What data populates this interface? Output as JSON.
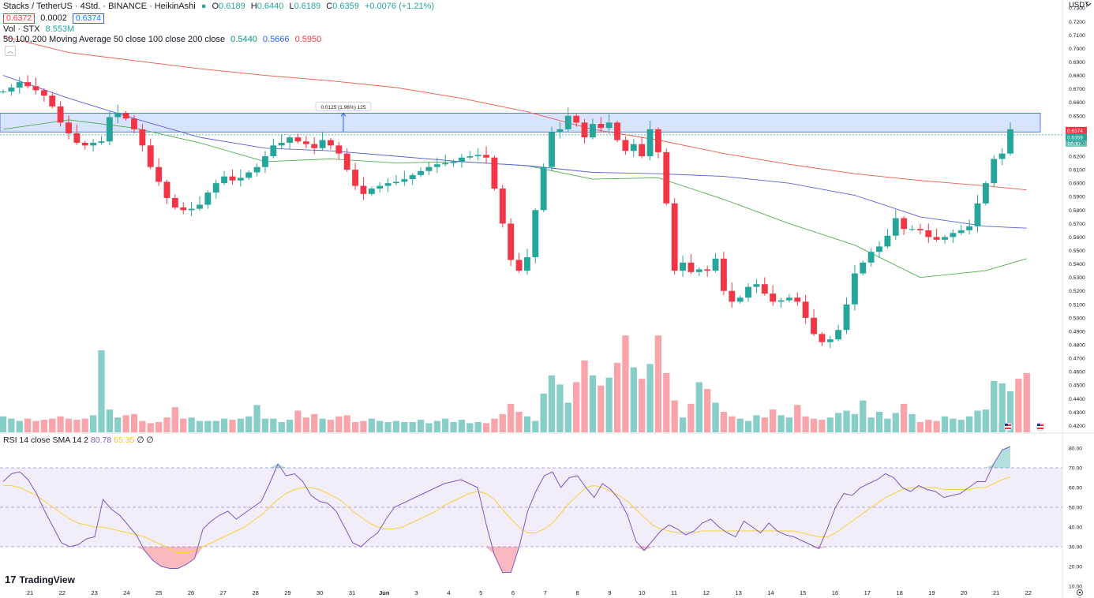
{
  "legend": {
    "title": "Stacks / TetherUS · 4Std. · BINANCE · HeikinAshi",
    "o_label": "O",
    "o_value": "0.6189",
    "h_label": "H",
    "h_value": "0.6440",
    "l_label": "L",
    "l_value": "0.6189",
    "c_label": "C",
    "c_value": "0.6359",
    "change": "+0.0076 (+1.21%)",
    "bid": "0.6372",
    "spread": "0.0002",
    "ask": "0.6374",
    "vol_label": "Vol · STX",
    "vol_value": "8.553M",
    "ma_label": "50,100,200 Moving Average 50 close 100 close 200 close",
    "ma50": "0.5440",
    "ma100": "0.5666",
    "ma200": "0.5950",
    "rsi_label": "RSI 14 close SMA 14 2",
    "rsi_value": "80.78",
    "rsi_sma": "65.35",
    "rsi_extra": "∅ ∅"
  },
  "brand": {
    "logo_text": "TradingView"
  },
  "colors": {
    "up": "#26a69a",
    "down": "#f23645",
    "ma50": "#4caf50",
    "ma100": "#5b5fd6",
    "ma200": "#f05a4f",
    "rsi": "#7e57c2",
    "rsi_sma": "#f5d23b",
    "zone": "#2962ff"
  },
  "chart_data": [
    {
      "type": "candlestick",
      "title": "Stacks / TetherUS · 4Std. · BINANCE · HeikinAshi",
      "currency": "USDT",
      "x_labels": [
        "21",
        "22",
        "23",
        "24",
        "25",
        "26",
        "27",
        "28",
        "29",
        "30",
        "31",
        "Jun",
        "3",
        "4",
        "5",
        "6",
        "7",
        "8",
        "9",
        "10",
        "11",
        "12",
        "13",
        "14",
        "15",
        "16",
        "17",
        "18",
        "19",
        "20",
        "21",
        "22"
      ],
      "y_ticks": [
        "0.7300",
        "0.7200",
        "0.7100",
        "0.7000",
        "0.6900",
        "0.6800",
        "0.6700",
        "0.6600",
        "0.6500",
        "0.6400",
        "0.6300",
        "0.6200",
        "0.6100",
        "0.6000",
        "0.5900",
        "0.5800",
        "0.5700",
        "0.5600",
        "0.5500",
        "0.5400",
        "0.5300",
        "0.5200",
        "0.5100",
        "0.5000",
        "0.4900",
        "0.4800",
        "0.4700",
        "0.4600",
        "0.4500",
        "0.4400",
        "0.4300",
        "0.4200"
      ],
      "ylim": [
        0.415,
        0.736
      ],
      "price_labels": [
        "0.6374",
        "0.6359",
        "00:30:"
      ],
      "range_zone": {
        "low": 0.638,
        "high": 0.652,
        "label": "0.0125 (1.96%) 125"
      },
      "close_path": [
        0.668,
        0.671,
        0.675,
        0.672,
        0.669,
        0.665,
        0.657,
        0.645,
        0.637,
        0.63,
        0.628,
        0.63,
        0.631,
        0.649,
        0.652,
        0.648,
        0.64,
        0.628,
        0.612,
        0.601,
        0.589,
        0.582,
        0.58,
        0.581,
        0.584,
        0.593,
        0.6,
        0.605,
        0.602,
        0.604,
        0.608,
        0.612,
        0.62,
        0.628,
        0.63,
        0.634,
        0.631,
        0.629,
        0.626,
        0.632,
        0.628,
        0.622,
        0.61,
        0.598,
        0.592,
        0.596,
        0.598,
        0.6,
        0.601,
        0.603,
        0.606,
        0.609,
        0.612,
        0.614,
        0.615,
        0.616,
        0.619,
        0.62,
        0.621,
        0.619,
        0.596,
        0.57,
        0.543,
        0.535,
        0.545,
        0.58,
        0.612,
        0.638,
        0.64,
        0.65,
        0.645,
        0.634,
        0.644,
        0.641,
        0.645,
        0.632,
        0.624,
        0.629,
        0.62,
        0.64,
        0.623,
        0.585,
        0.535,
        0.541,
        0.534,
        0.536,
        0.535,
        0.544,
        0.52,
        0.512,
        0.515,
        0.523,
        0.525,
        0.518,
        0.512,
        0.513,
        0.515,
        0.512,
        0.5,
        0.488,
        0.482,
        0.484,
        0.491,
        0.51,
        0.533,
        0.541,
        0.549,
        0.553,
        0.561,
        0.574,
        0.566,
        0.566,
        0.565,
        0.56,
        0.558,
        0.56,
        0.563,
        0.565,
        0.568,
        0.585,
        0.6,
        0.618,
        0.622,
        0.64
      ],
      "series": [
        {
          "name": "MA 50",
          "x": [
            0,
            8,
            16,
            24,
            32,
            40,
            48,
            56,
            64,
            72,
            80,
            88,
            96,
            104,
            112,
            120,
            125
          ],
          "values": [
            0.64,
            0.647,
            0.641,
            0.63,
            0.616,
            0.618,
            0.615,
            0.616,
            0.613,
            0.603,
            0.604,
            0.588,
            0.57,
            0.554,
            0.53,
            0.535,
            0.544
          ]
        },
        {
          "name": "MA 100",
          "x": [
            0,
            8,
            16,
            24,
            32,
            40,
            48,
            56,
            64,
            72,
            80,
            88,
            96,
            104,
            112,
            120,
            125
          ],
          "values": [
            0.68,
            0.663,
            0.648,
            0.634,
            0.626,
            0.624,
            0.62,
            0.616,
            0.613,
            0.608,
            0.607,
            0.605,
            0.6,
            0.591,
            0.575,
            0.568,
            0.5666
          ]
        },
        {
          "name": "MA 200",
          "x": [
            0,
            8,
            16,
            24,
            32,
            40,
            48,
            56,
            64,
            72,
            80,
            88,
            96,
            104,
            112,
            120,
            125
          ],
          "values": [
            0.709,
            0.697,
            0.691,
            0.685,
            0.68,
            0.676,
            0.671,
            0.663,
            0.653,
            0.64,
            0.632,
            0.622,
            0.614,
            0.607,
            0.602,
            0.598,
            0.595
          ]
        }
      ]
    },
    {
      "type": "bar",
      "title": "Vol · STX",
      "values": [
        14,
        12,
        10,
        12,
        10,
        11,
        12,
        14,
        12,
        11,
        12,
        15,
        72,
        20,
        13,
        15,
        16,
        10,
        8,
        9,
        13,
        22,
        12,
        13,
        10,
        10,
        10,
        12,
        11,
        12,
        14,
        24,
        12,
        12,
        9,
        11,
        19,
        13,
        16,
        12,
        11,
        14,
        15,
        9,
        10,
        12,
        10,
        9,
        10,
        9,
        9,
        11,
        8,
        10,
        12,
        9,
        11,
        8,
        9,
        8,
        12,
        16,
        25,
        18,
        14,
        10,
        34,
        50,
        42,
        26,
        44,
        63,
        50,
        41,
        48,
        61,
        85,
        57,
        47,
        60,
        85,
        52,
        28,
        13,
        25,
        44,
        38,
        26,
        18,
        14,
        12,
        10,
        15,
        13,
        20,
        15,
        13,
        24,
        14,
        12,
        11,
        13,
        17,
        19,
        16,
        28,
        13,
        18,
        12,
        17,
        25,
        16,
        9,
        11,
        10,
        14,
        12,
        11,
        14,
        19,
        20,
        45,
        43,
        36,
        47,
        52
      ],
      "ylim": [
        0,
        90
      ]
    },
    {
      "type": "line",
      "title": "RSI 14 close SMA 14 2",
      "y_ticks": [
        "80.00",
        "70.00",
        "60.00",
        "50.00",
        "40.00",
        "30.00",
        "20.00",
        "10.00"
      ],
      "ylim": [
        8,
        84
      ],
      "bands": [
        30,
        70
      ],
      "series": [
        {
          "name": "RSI",
          "values": [
            63,
            67,
            68,
            64,
            57,
            48,
            40,
            32,
            30,
            31,
            34,
            35,
            54,
            49,
            46,
            41,
            36,
            28,
            23,
            20,
            19,
            19,
            21,
            24,
            39,
            43,
            46,
            48,
            44,
            47,
            50,
            53,
            62,
            72,
            66,
            67,
            63,
            56,
            53,
            52,
            48,
            40,
            32,
            30,
            34,
            37,
            44,
            50,
            52,
            54,
            56,
            58,
            60,
            62,
            63,
            64,
            62,
            60,
            42,
            26,
            17,
            17,
            30,
            48,
            58,
            66,
            68,
            60,
            65,
            66,
            60,
            55,
            62,
            59,
            54,
            46,
            33,
            28,
            33,
            38,
            41,
            39,
            36,
            38,
            42,
            44,
            40,
            37,
            35,
            43,
            40,
            37,
            42,
            38,
            36,
            35,
            33,
            31,
            29,
            39,
            50,
            57,
            56,
            60,
            62,
            64,
            67,
            65,
            60,
            58,
            61,
            59,
            58,
            55,
            56,
            57,
            60,
            63,
            63,
            72,
            79,
            80.78
          ]
        },
        {
          "name": "RSI SMA",
          "values": [
            61,
            61,
            60,
            58,
            56,
            53,
            50,
            47,
            44,
            42,
            41,
            40,
            40,
            39,
            38,
            37,
            36,
            35,
            33,
            31,
            29,
            27,
            27,
            28,
            30,
            32,
            34,
            36,
            38,
            40,
            43,
            46,
            50,
            54,
            57,
            59,
            60,
            60,
            59,
            57,
            55,
            52,
            48,
            45,
            42,
            40,
            39,
            39,
            40,
            42,
            44,
            46,
            48,
            51,
            53,
            55,
            57,
            58,
            57,
            54,
            49,
            44,
            40,
            37,
            37,
            39,
            42,
            47,
            52,
            56,
            60,
            61,
            60,
            58,
            56,
            53,
            49,
            45,
            41,
            39,
            38,
            37,
            37,
            37,
            38,
            38,
            38,
            38,
            38,
            38,
            38,
            38,
            38,
            38,
            38,
            38,
            37,
            36,
            35,
            35,
            37,
            40,
            43,
            46,
            49,
            52,
            55,
            57,
            59,
            60,
            60,
            60,
            60,
            59,
            59,
            59,
            59,
            60,
            60,
            62,
            64,
            65.35
          ]
        }
      ]
    }
  ]
}
